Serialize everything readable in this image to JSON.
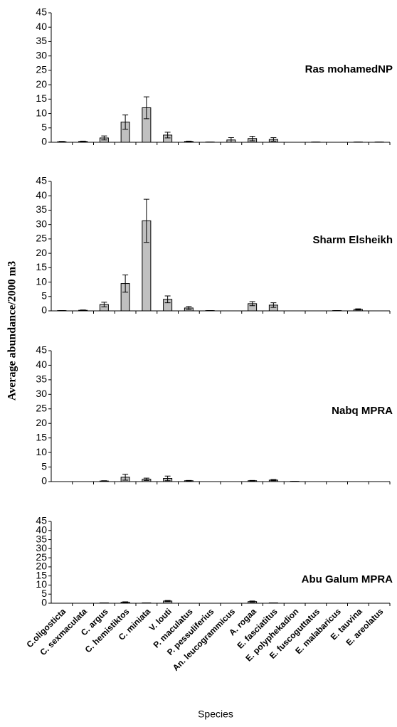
{
  "chart_data": [
    {
      "type": "bar",
      "title": "Ras mohamedNP",
      "values": [
        0.2,
        0.3,
        1.5,
        7,
        12,
        2.5,
        0.3,
        0.1,
        0.8,
        1.3,
        1,
        0,
        0.1,
        0,
        0.1,
        0.1
      ],
      "errors": [
        0.1,
        0.1,
        0.7,
        2.5,
        3.8,
        1,
        0.1,
        0,
        0.8,
        0.8,
        0.6,
        0,
        0,
        0,
        0,
        0
      ],
      "color": "#c0c0c0",
      "ylim": [
        0,
        45
      ],
      "yticks": [
        0,
        5,
        10,
        15,
        20,
        25,
        30,
        35,
        40,
        45
      ]
    },
    {
      "type": "bar",
      "title": "Sharm Elsheikh",
      "ylabel": "Average abundance/2000 m3",
      "values": [
        0.1,
        0.2,
        2.2,
        9.5,
        31.3,
        4,
        1,
        0.1,
        0,
        2.5,
        2,
        0,
        0,
        0.1,
        0.5,
        0
      ],
      "errors": [
        0,
        0.1,
        0.8,
        3,
        7.5,
        1.2,
        0.5,
        0,
        0,
        0.7,
        0.8,
        0,
        0,
        0,
        0.2,
        0
      ],
      "color": "#c0c0c0",
      "ylim": [
        0,
        45
      ],
      "yticks": [
        0,
        5,
        10,
        15,
        20,
        25,
        30,
        35,
        40,
        45
      ]
    },
    {
      "type": "bar",
      "title": "Nabq MPRA",
      "values": [
        0,
        0,
        0.2,
        1.5,
        0.8,
        1.1,
        0.3,
        0,
        0,
        0.3,
        0.5,
        0.1,
        0,
        0,
        0,
        0
      ],
      "errors": [
        0,
        0,
        0.1,
        1,
        0.4,
        0.8,
        0.1,
        0,
        0,
        0.1,
        0.2,
        0,
        0,
        0,
        0,
        0
      ],
      "color": "#c0c0c0",
      "ylim": [
        0,
        45
      ],
      "yticks": [
        0,
        5,
        10,
        15,
        20,
        25,
        30,
        35,
        40,
        45
      ]
    },
    {
      "type": "bar",
      "title": "Abu Galum MPRA",
      "xlabel": "Species",
      "categories": [
        "C.oligosticta",
        "C. sexmaculata",
        "C. argus",
        "C. hemistiktos",
        "C. miniata",
        "V. louti",
        "P. maculatus",
        "P. pessuliferius",
        "An. leucogrammicus",
        "A. rogaa",
        "E. fasciatitus",
        "E. polyphekadion",
        "E. fuscoguttatus",
        "E. malabaricus",
        "E. tauvina",
        "E. areolatus"
      ],
      "values": [
        0,
        0,
        0.2,
        0.6,
        0.2,
        1.2,
        0,
        0,
        0,
        0.9,
        0.2,
        0,
        0,
        0,
        0,
        0
      ],
      "errors": [
        0,
        0,
        0,
        0.2,
        0,
        0.3,
        0,
        0,
        0,
        0.3,
        0,
        0,
        0,
        0,
        0,
        0
      ],
      "color": "#c0c0c0",
      "ylim": [
        0,
        45
      ],
      "yticks": [
        0,
        5,
        10,
        15,
        20,
        25,
        30,
        35,
        40,
        45
      ]
    }
  ]
}
